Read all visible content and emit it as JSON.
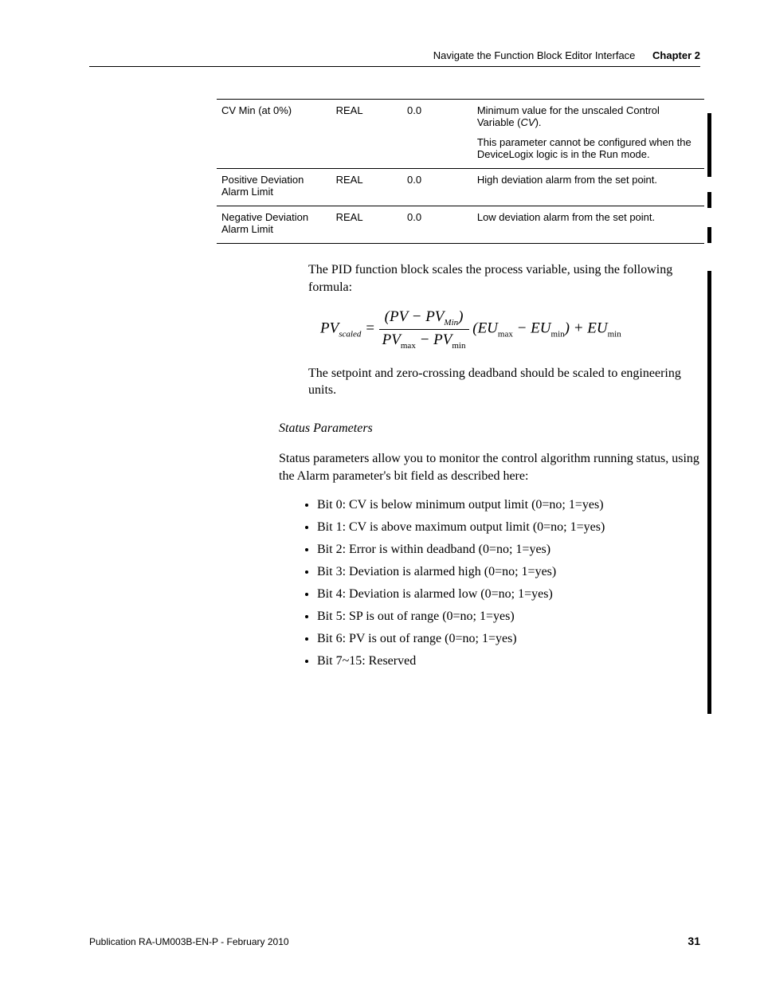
{
  "header": {
    "title": "Navigate the Function Block Editor Interface",
    "chapter": "Chapter 2"
  },
  "table": {
    "rows": [
      {
        "name": "CV Min (at 0%)",
        "type": "REAL",
        "def": "0.0",
        "desc1": "Minimum value for the unscaled Control Variable (",
        "desc_em": "CV",
        "desc1b": ").",
        "desc2": "This parameter cannot  be configured when the DeviceLogix logic is in the Run mode."
      },
      {
        "name": "Positive Deviation Alarm Limit",
        "type": "REAL",
        "def": "0.0",
        "desc1": "High deviation alarm from the set point.",
        "desc_em": "",
        "desc1b": "",
        "desc2": ""
      },
      {
        "name": "Negative Deviation Alarm Limit",
        "type": "REAL",
        "def": "0.0",
        "desc1": "Low deviation alarm from the set point.",
        "desc_em": "",
        "desc1b": "",
        "desc2": ""
      }
    ]
  },
  "para1": "The PID function block scales the process variable, using the following formula:",
  "formula": {
    "lhs": "PV",
    "lhs_sub": "scaled",
    "eq": " = ",
    "num_a": "(PV − PV",
    "num_sub": "Min",
    "num_b": ")",
    "den_a": "PV",
    "den_sub1": "max",
    "den_b": " − PV",
    "den_sub2": "min",
    "paren_a": " (EU",
    "p_sub1": "max",
    "paren_b": " − EU",
    "p_sub2": "min",
    "paren_c": ") + EU",
    "p_sub3": "min"
  },
  "para2": "The setpoint and zero-crossing deadband should be scaled to engineering units.",
  "section": "Status Parameters",
  "para3": "Status parameters allow you to monitor the control algorithm running status, using the Alarm parameter's bit field as described here:",
  "bits": [
    "Bit 0: CV is below minimum output limit (0=no; 1=yes)",
    "Bit 1: CV is above maximum output limit (0=no; 1=yes)",
    "Bit 2: Error is within deadband (0=no; 1=yes)",
    "Bit 3: Deviation is alarmed high (0=no; 1=yes)",
    "Bit 4: Deviation is alarmed low (0=no; 1=yes)",
    "Bit 5: SP is out of range (0=no; 1=yes)",
    "Bit 6: PV is out of range (0=no; 1=yes)",
    "Bit 7~15: Reserved"
  ],
  "footer": {
    "publication": "Publication RA-UM003B-EN-P - February 2010",
    "page": "31"
  }
}
